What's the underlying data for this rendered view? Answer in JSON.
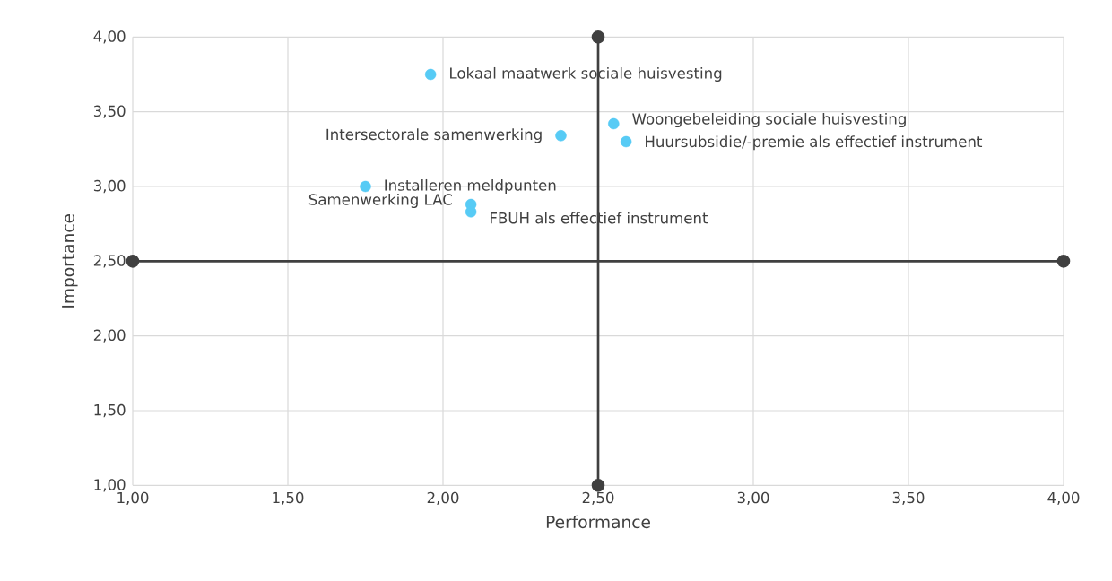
{
  "chart_data": {
    "type": "scatter",
    "xlabel": "Performance",
    "ylabel": "Importance",
    "xlim": [
      1,
      4
    ],
    "ylim": [
      1,
      4
    ],
    "xticks": [
      {
        "value": 1,
        "label": "1,00"
      },
      {
        "value": 1.5,
        "label": "1,50"
      },
      {
        "value": 2,
        "label": "2,00"
      },
      {
        "value": 2.5,
        "label": "2,50"
      },
      {
        "value": 3,
        "label": "3,00"
      },
      {
        "value": 3.5,
        "label": "3,50"
      },
      {
        "value": 4,
        "label": "4,00"
      }
    ],
    "yticks": [
      {
        "value": 1,
        "label": "1,00"
      },
      {
        "value": 1.5,
        "label": "1,50"
      },
      {
        "value": 2,
        "label": "2,00"
      },
      {
        "value": 2.5,
        "label": "2,50"
      },
      {
        "value": 3,
        "label": "3,00"
      },
      {
        "value": 3.5,
        "label": "3,50"
      },
      {
        "value": 4,
        "label": "4,00"
      }
    ],
    "grid": true,
    "marker": "circle",
    "series": [
      {
        "type": "line",
        "color": "#404040",
        "x": [
          2.5,
          2.5
        ],
        "values": [
          1,
          4
        ]
      },
      {
        "type": "line",
        "color": "#404040",
        "x": [
          1,
          4
        ],
        "values": [
          2.5,
          2.5
        ]
      },
      {
        "color": "#57cbf5",
        "x": [
          1.96,
          2.38,
          2.55,
          2.59,
          1.75,
          2.09,
          2.09
        ],
        "values": [
          3.75,
          3.34,
          3.42,
          3.3,
          3.0,
          2.88,
          2.83
        ]
      }
    ],
    "annotations": [
      {
        "text": "Lokaal maatwerk sociale huisvesting",
        "x": 1.96,
        "y": 3.75
      },
      {
        "text": "Intersectorale samenwerking",
        "x": 2.38,
        "y": 3.34
      },
      {
        "text": "Woongebeleiding sociale huisvesting",
        "x": 2.55,
        "y": 3.42
      },
      {
        "text": "Huursubsidie/-premie als effectief instrument",
        "x": 2.59,
        "y": 3.3
      },
      {
        "text": "Installeren meldpunten",
        "x": 1.75,
        "y": 3.0
      },
      {
        "text": "Samenwerking LAC",
        "x": 2.09,
        "y": 2.88
      },
      {
        "text": "FBUH als effectief instrument",
        "x": 2.09,
        "y": 2.83
      }
    ]
  }
}
